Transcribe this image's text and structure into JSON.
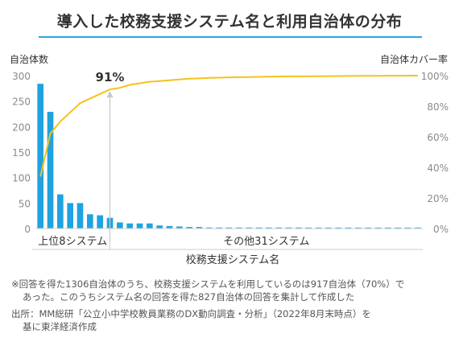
{
  "header": {
    "title": "導入した校務支援システム名と利用自治体の分布"
  },
  "colors": {
    "bar": "#1fa3e0",
    "line": "#f5c21b",
    "title_rule": "#2ba6de",
    "axis_text": "#8a8a8a"
  },
  "chart_data": {
    "type": "bar",
    "title": "導入した校務支援システム名と利用自治体の分布",
    "xlabel": "校務支援システム名",
    "ylabel": "自治体数",
    "y2label": "自治体カバー率",
    "ylim": [
      0,
      300
    ],
    "y2lim": [
      0,
      1.0
    ],
    "yticks": [
      "0",
      "50",
      "100",
      "150",
      "200",
      "250",
      "300"
    ],
    "y2ticks": [
      "0%",
      "20%",
      "40%",
      "60%",
      "80%",
      "100%"
    ],
    "annotation": "91%",
    "group_labels": {
      "top": "上位8システム",
      "others": "その他31システム"
    },
    "bar_values": [
      284,
      229,
      67,
      50,
      50,
      28,
      26,
      21,
      12,
      10,
      10,
      10,
      6,
      5,
      4,
      3,
      3,
      2,
      2,
      2,
      2,
      2,
      2,
      2,
      2,
      2,
      2,
      1,
      1,
      1,
      1,
      1,
      1,
      1,
      1,
      1,
      1,
      1,
      1
    ],
    "cumulative_pct": [
      34,
      62,
      70,
      76,
      82,
      85,
      88,
      91,
      92,
      94,
      95,
      96,
      96.5,
      97,
      97.5,
      98,
      98.2,
      98.5,
      98.7,
      98.9,
      99,
      99.1,
      99.2,
      99.3,
      99.4,
      99.5,
      99.55,
      99.6,
      99.65,
      99.7,
      99.75,
      99.8,
      99.85,
      99.9,
      99.92,
      99.94,
      99.96,
      99.98,
      100
    ],
    "grid": false
  },
  "notes": {
    "line1": "※回答を得た1306自治体のうち、校務支援システムを利用しているのは917自治体（70%）で",
    "line2": "あった。このうちシステム名の回答を得た827自治体の回答を集計して作成した",
    "line3": "出所：MM総研「公立小中学校教員業務のDX動向調査・分析」（2022年8月末時点）を",
    "line4": "基に東洋経済作成"
  }
}
